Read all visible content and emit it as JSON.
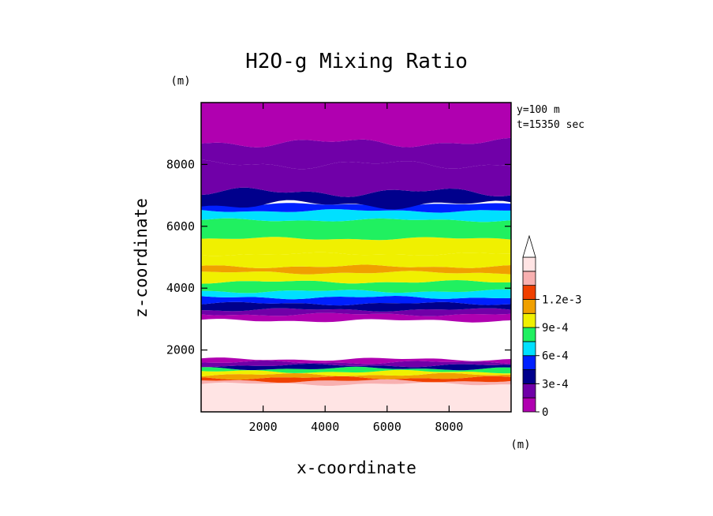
{
  "chart_data": {
    "type": "filled-contour",
    "title": "H2O-g Mixing Ratio",
    "xlabel": "x-coordinate",
    "ylabel": "z-coordinate",
    "x_unit": "(m)",
    "y_unit": "(m)",
    "xlim": [
      0,
      10000
    ],
    "ylim": [
      0,
      10000
    ],
    "xticks": [
      2000,
      4000,
      6000,
      8000
    ],
    "yticks": [
      2000,
      4000,
      6000,
      8000
    ],
    "xtick_labels": [
      "2000",
      "4000",
      "6000",
      "8000"
    ],
    "ytick_labels": [
      "2000",
      "4000",
      "6000",
      "8000"
    ],
    "annotations": [
      "y=100 m",
      "t=15350 sec"
    ],
    "colorbar": {
      "levels": [
        0,
        0.00015,
        0.0003,
        0.00045,
        0.0006,
        0.00075,
        0.0009,
        0.00105,
        0.0012,
        0.00135
      ],
      "tick_values": [
        0,
        0.0003,
        0.0006,
        0.0009,
        0.0012
      ],
      "tick_labels": [
        "0",
        "3e-4",
        "6e-4",
        "9e-4",
        "1.2e-3"
      ],
      "colors": [
        "#b000b0",
        "#7000a8",
        "#00008c",
        "#0020ff",
        "#00e0ff",
        "#20f060",
        "#f0f000",
        "#f0a000",
        "#f04000",
        "#f8b0b0",
        "#ffe4e4"
      ],
      "extend": "max"
    },
    "bands": [
      {
        "z": [
          0,
          900
        ],
        "level": 10
      },
      {
        "z": [
          900,
          1000
        ],
        "level": 9
      },
      {
        "z": [
          1000,
          1100
        ],
        "level": 8
      },
      {
        "z": [
          1100,
          1200
        ],
        "level": 7
      },
      {
        "z": [
          1200,
          1300
        ],
        "level": 6
      },
      {
        "z": [
          1300,
          1400
        ],
        "level": 5
      },
      {
        "z": [
          1400,
          1500
        ],
        "level": 2
      },
      {
        "z": [
          1500,
          1600
        ],
        "level": 1
      },
      {
        "z": [
          1600,
          1700
        ],
        "level": 0
      },
      {
        "z": [
          2950,
          3150
        ],
        "level": 0
      },
      {
        "z": [
          3150,
          3300
        ],
        "level": 1
      },
      {
        "z": [
          3300,
          3500
        ],
        "level": 2
      },
      {
        "z": [
          3500,
          3700
        ],
        "level": 3
      },
      {
        "z": [
          3700,
          3900
        ],
        "level": 4
      },
      {
        "z": [
          3900,
          4200
        ],
        "level": 5
      },
      {
        "z": [
          4200,
          4500
        ],
        "level": 6
      },
      {
        "z": [
          4500,
          4700
        ],
        "level": 7
      },
      {
        "z": [
          4700,
          5100
        ],
        "level": 6
      },
      {
        "z": [
          5100,
          5600
        ],
        "level": 6
      },
      {
        "z": [
          5600,
          6200
        ],
        "level": 5
      },
      {
        "z": [
          6200,
          6500
        ],
        "level": 4
      },
      {
        "z": [
          6500,
          6700
        ],
        "level": 3
      },
      {
        "z": [
          6700,
          7100
        ],
        "level": 2
      },
      {
        "z": [
          7100,
          8000
        ],
        "level": 1
      },
      {
        "z": [
          8000,
          8700
        ],
        "level": 1
      },
      {
        "z": [
          8700,
          10000
        ],
        "level": 0
      }
    ]
  }
}
